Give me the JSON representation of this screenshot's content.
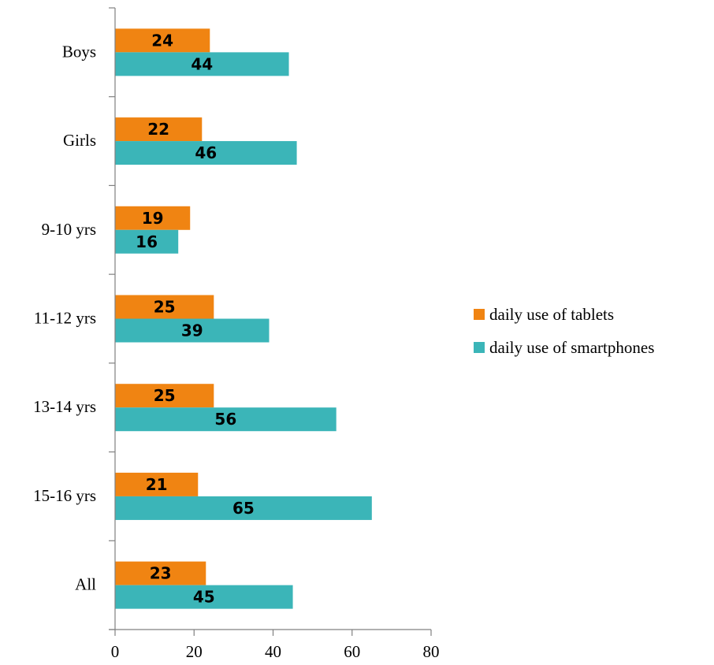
{
  "chart_data": {
    "type": "bar",
    "orientation": "horizontal",
    "categories": [
      "Boys",
      "Girls",
      "9-10 yrs",
      "11-12 yrs",
      "13-14 yrs",
      "15-16 yrs",
      "All"
    ],
    "series": [
      {
        "name": "daily use of tablets",
        "color": "#f08412",
        "values": [
          24,
          22,
          19,
          25,
          25,
          21,
          23
        ]
      },
      {
        "name": "daily use of smartphones",
        "color": "#3bb5b8",
        "values": [
          44,
          46,
          16,
          39,
          56,
          65,
          45
        ]
      }
    ],
    "xlim": [
      0,
      80
    ],
    "x_ticks": [
      "0",
      "20",
      "40",
      "60",
      "80"
    ],
    "grid": false,
    "data_labels": true,
    "legend_position": "right"
  }
}
